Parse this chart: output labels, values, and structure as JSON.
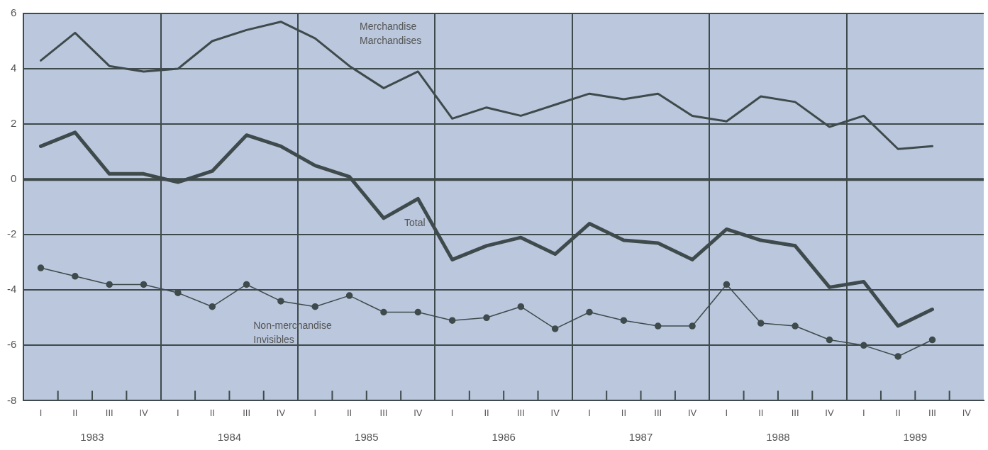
{
  "chart_data": {
    "type": "line",
    "categories": [
      "I",
      "II",
      "III",
      "IV",
      "I",
      "II",
      "III",
      "IV",
      "I",
      "II",
      "III",
      "IV",
      "I",
      "II",
      "III",
      "IV",
      "I",
      "II",
      "III",
      "IV",
      "I",
      "II",
      "III",
      "IV",
      "I",
      "II",
      "III",
      "IV"
    ],
    "series": [
      {
        "name": "Merchandise Marchandises",
        "color": "#3f4a4c",
        "values": [
          4.3,
          5.3,
          4.1,
          3.9,
          4.0,
          5.0,
          5.4,
          5.7,
          5.1,
          4.1,
          3.3,
          3.9,
          2.2,
          2.6,
          2.3,
          2.7,
          3.1,
          2.9,
          3.1,
          2.3,
          2.1,
          3.0,
          2.8,
          1.9,
          2.3,
          1.1,
          1.2,
          null
        ]
      },
      {
        "name": "Total",
        "color": "#3f4a4c",
        "values": [
          1.2,
          1.7,
          0.2,
          0.2,
          -0.1,
          0.3,
          1.6,
          1.2,
          0.5,
          0.1,
          -1.4,
          -0.7,
          -2.9,
          -2.4,
          -2.1,
          -2.7,
          -1.6,
          -2.2,
          -2.3,
          -2.9,
          -1.8,
          -2.2,
          -2.4,
          -3.9,
          -3.7,
          -5.3,
          -4.7,
          null
        ]
      },
      {
        "name": "Non-merchandise Invisibles",
        "color": "#3f4a4c",
        "marker": "circle",
        "values": [
          -3.2,
          -3.5,
          -3.8,
          -3.8,
          -4.1,
          -4.6,
          -3.8,
          -4.4,
          -4.6,
          -4.2,
          -4.8,
          -4.8,
          -5.1,
          -5.0,
          -4.6,
          -5.4,
          -4.8,
          -5.1,
          -5.3,
          -5.3,
          -3.8,
          -5.2,
          -5.3,
          -5.8,
          -6.0,
          -6.4,
          -5.8,
          null
        ]
      }
    ],
    "annotations": [
      "1983",
      "1984",
      "1985",
      "1986",
      "1987",
      "1988",
      "1989"
    ],
    "ylim": [
      -8,
      6
    ],
    "yticks": [
      -8,
      -6,
      -4,
      -2,
      0,
      2,
      4,
      6
    ],
    "ref_lines": [
      {
        "axis": "y",
        "value": 0,
        "color": "#3f4a4c"
      }
    ],
    "grid": true,
    "legend": false,
    "marker": "none",
    "line_style": "solid"
  }
}
